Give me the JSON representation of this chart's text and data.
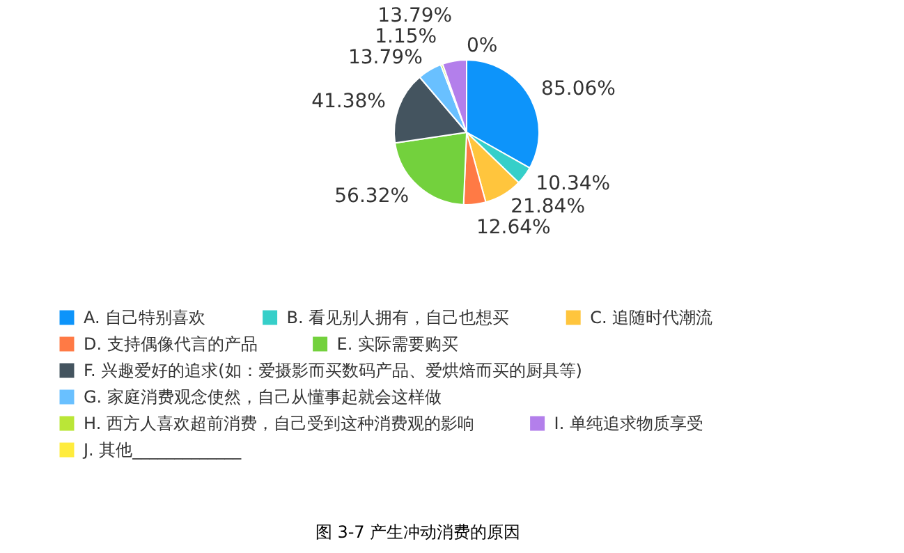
{
  "chart_data": {
    "type": "pie",
    "title": "图 3-7  产生冲动消费的原因",
    "categories": [
      "A. 自己特别喜欢",
      "B. 看见别人拥有，自己也想买",
      "C. 追随时代潮流",
      "D. 支持偶像代言的产品",
      "E. 实际需要购买",
      "F. 兴趣爱好的追求(如：爱摄影而买数码产品、爱烘焙而买的厨具等)",
      "G. 家庭消费观念使然，自己从懂事起就会这样做",
      "H. 西方人喜欢超前消费，自己受到这种消费观的影响",
      "I. 单纯追求物质享受",
      "J. 其他_____________"
    ],
    "values": [
      85.06,
      10.34,
      21.84,
      12.64,
      56.32,
      41.38,
      13.79,
      1.15,
      13.79,
      0
    ],
    "value_labels": [
      "85.06%",
      "10.34%",
      "21.84%",
      "12.64%",
      "56.32%",
      "41.38%",
      "13.79%",
      "1.15%",
      "13.79%",
      "0%"
    ],
    "colors": [
      "#0d94fa",
      "#36cfc9",
      "#ffc53d",
      "#ff7a45",
      "#73d13d",
      "#44545f",
      "#69c0ff",
      "#bae637",
      "#b37feb",
      "#ffec3d"
    ],
    "legend": "bottom"
  }
}
